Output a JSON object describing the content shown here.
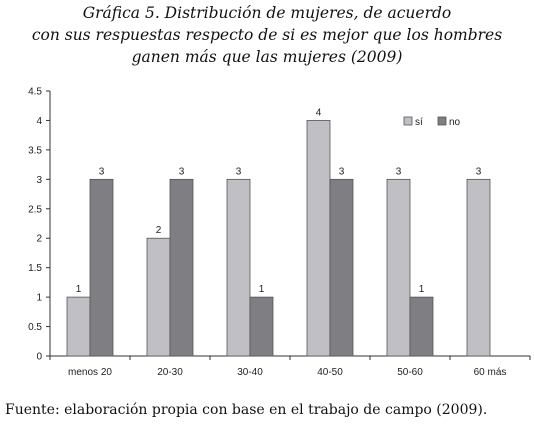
{
  "title_lines": [
    "Gráfica 5. Distribución de mujeres, de acuerdo",
    "con sus respuestas respecto de si es mejor que los hombres",
    "ganen más que las mujeres (2009)"
  ],
  "source": "Fuente: elaboración propia con base en el trabajo de campo (2009).",
  "colors": {
    "si": "#c0bfc4",
    "no": "#7f7e83",
    "border": "#555555"
  },
  "chart_data": {
    "type": "bar",
    "title": "Gráfica 5. Distribución de mujeres, de acuerdo con sus respuestas respecto de si es mejor que los hombres ganen más que las mujeres (2009)",
    "categories": [
      "menos 20",
      "20-30",
      "30-40",
      "40-50",
      "50-60",
      "60 más"
    ],
    "series": [
      {
        "name": "sí",
        "values": [
          1,
          2,
          3,
          4,
          3,
          3
        ]
      },
      {
        "name": "no",
        "values": [
          3,
          3,
          1,
          3,
          1,
          null
        ]
      }
    ],
    "xlabel": "",
    "ylabel": "",
    "ylim": [
      0,
      4.5
    ],
    "yticks": [
      "0",
      "0.5",
      "1",
      "1.5",
      "2",
      "2.5",
      "3",
      "3.5",
      "4",
      "4.5"
    ],
    "legend": "top-right",
    "grid": false
  }
}
